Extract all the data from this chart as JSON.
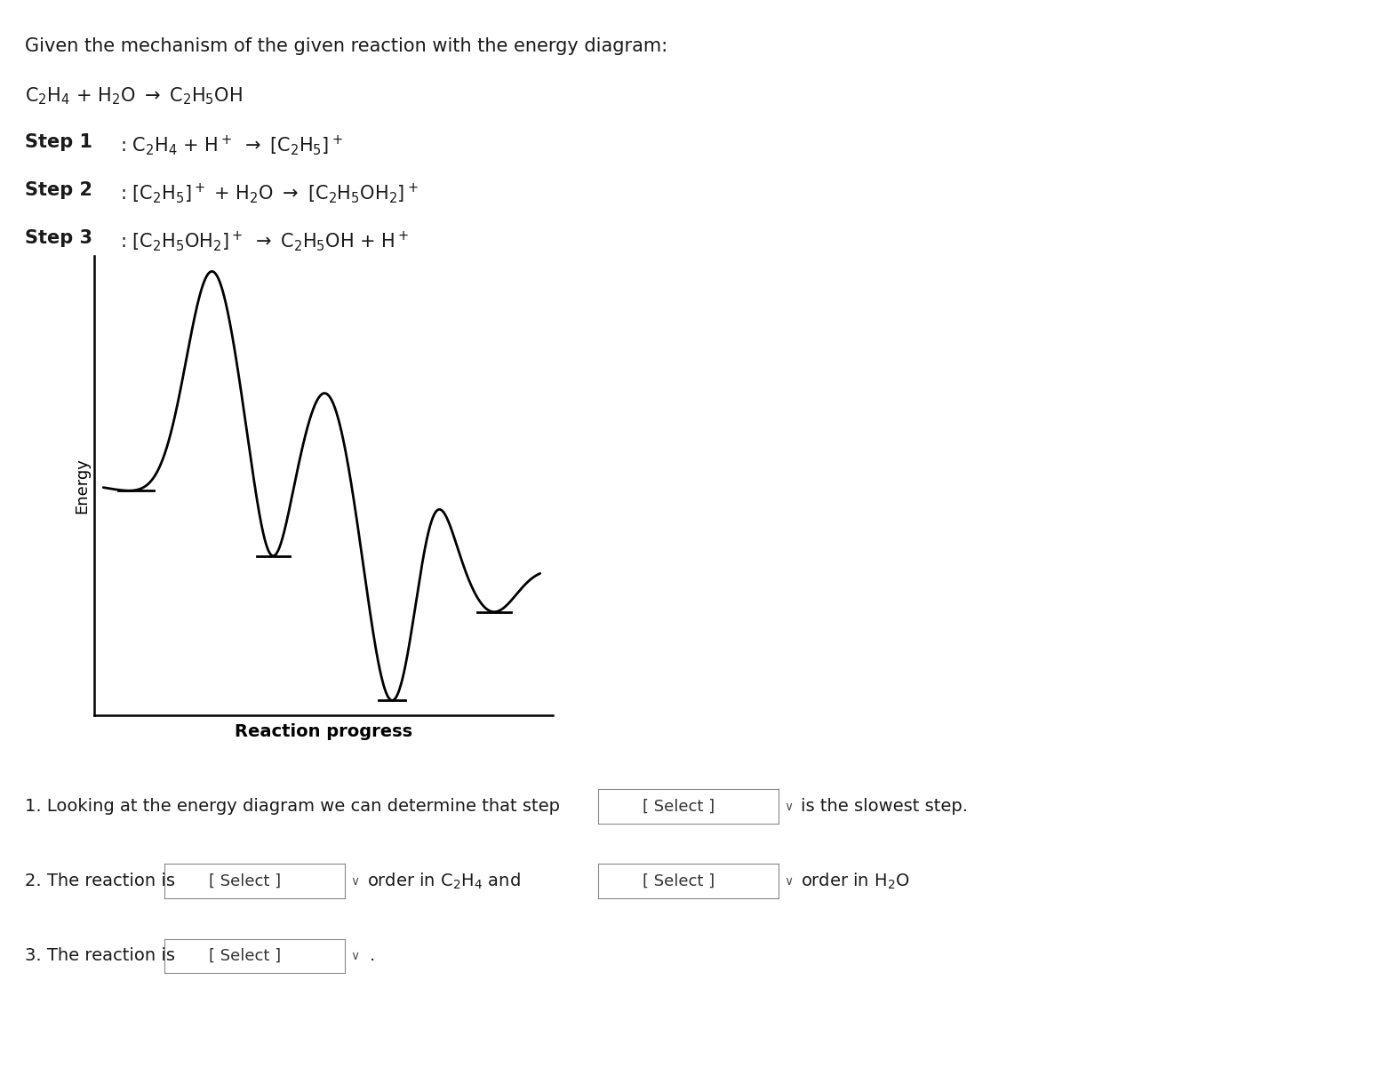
{
  "title_text": "Given the mechanism of the given reaction with the energy diagram:",
  "bg_color": "#ffffff",
  "line_color": "#000000",
  "text_color": "#1a1a1a",
  "xlabel": "Reaction progress",
  "ylabel": "Energy",
  "q1_text": "1. Looking at the energy diagram we can determine that step",
  "q1_end": "is the slowest step.",
  "q2_start": "2. The reaction is",
  "q2_mid": "order in C",
  "q2_mid2": "H",
  "q2_mid3": " and",
  "q2_end": "order in H",
  "q2_end2": "O",
  "q3_start": "3. The reaction is",
  "q3_end": ".",
  "select_text": "[ Select ]",
  "font_size_title": 15,
  "font_size_body": 15,
  "font_size_q": 14
}
